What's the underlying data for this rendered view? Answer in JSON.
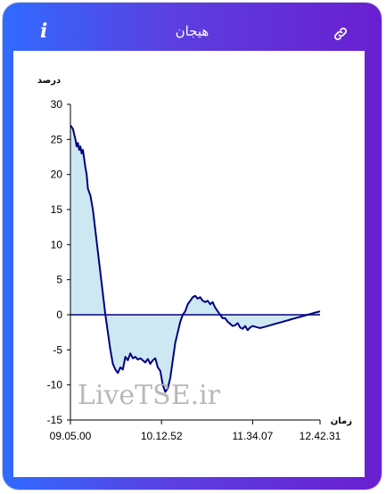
{
  "header": {
    "title": "هیجان",
    "info_glyph": "i",
    "info_icon": "info-icon",
    "link_icon": "link-icon"
  },
  "colors": {
    "gradient_start": "#2f6bff",
    "gradient_end": "#6a1fd0",
    "line": "#000080",
    "fill": "#cde8f2"
  },
  "watermark": "LiveTSE.ir",
  "chart_data": {
    "type": "area",
    "ylabel": "درصد",
    "xlabel": "زمان",
    "ylim": [
      -15,
      30
    ],
    "yticks": [
      30,
      25,
      20,
      15,
      10,
      5,
      0,
      -5,
      -10,
      -15
    ],
    "xlim": [
      0,
      100
    ],
    "xticks": [
      {
        "x": 0,
        "label": "09.05.00"
      },
      {
        "x": 36.5,
        "label": "10.12.52"
      },
      {
        "x": 73,
        "label": "11.34.07"
      },
      {
        "x": 100,
        "label": "12.42.31"
      }
    ],
    "grid": false,
    "series": [
      {
        "x": [
          0,
          1,
          2,
          2.5,
          3,
          3.5,
          4,
          4.5,
          5,
          6,
          6.5,
          7,
          8,
          9,
          10,
          11,
          12,
          13,
          14,
          15,
          16,
          17,
          18,
          19,
          20,
          21,
          22,
          23,
          24,
          25,
          26,
          27,
          28,
          29,
          30,
          31,
          32,
          33,
          34,
          35,
          36,
          37,
          38,
          39,
          40,
          41,
          42,
          43,
          44,
          45,
          46,
          47,
          48,
          49,
          50,
          51,
          52,
          53,
          54,
          55,
          56,
          57,
          58,
          59,
          60,
          61,
          62,
          63,
          64,
          65,
          66,
          67,
          68,
          69,
          70,
          71,
          72,
          73,
          74,
          75,
          76,
          77,
          78,
          79,
          80,
          81,
          82,
          83,
          84,
          85,
          86,
          87,
          88,
          89,
          90,
          91,
          92,
          93,
          94,
          95,
          96,
          97,
          98,
          99,
          100
        ],
        "y": [
          27,
          26.5,
          25,
          24,
          24.5,
          23.5,
          24,
          23,
          23.5,
          21,
          20,
          18,
          17,
          15,
          12,
          9,
          6,
          3,
          0,
          -2.5,
          -5,
          -7,
          -7.8,
          -8.3,
          -7.5,
          -7.8,
          -6,
          -6.5,
          -5.5,
          -6.2,
          -6,
          -6.4,
          -6.2,
          -6.5,
          -6.8,
          -6.3,
          -7,
          -6.5,
          -6.2,
          -7.5,
          -8,
          -10,
          -11,
          -10.5,
          -9,
          -6.5,
          -4,
          -2.5,
          -1,
          0,
          0.5,
          1.5,
          2,
          2.5,
          2.7,
          2.3,
          2.5,
          2,
          1.8,
          2,
          1.5,
          1.8,
          1,
          0.5,
          0,
          -0.5,
          -0.5,
          -1,
          -1.3,
          -1.6,
          -1.5,
          -1.2,
          -1.8,
          -2,
          -1.6,
          -2.2,
          -1.8,
          -1.6,
          -1.7,
          -1.8,
          -1.9,
          -1.8,
          -1.7,
          -1.6,
          -1.5,
          -1.4,
          -1.3,
          -1.2,
          -1.1,
          -1.0,
          -0.9,
          -0.8,
          -0.7,
          -0.6,
          -0.5,
          -0.4,
          -0.3,
          -0.2,
          -0.1,
          0,
          0.1,
          0.2,
          0.3,
          0.4,
          0.5
        ],
        "note_last": "tail"
      }
    ]
  }
}
